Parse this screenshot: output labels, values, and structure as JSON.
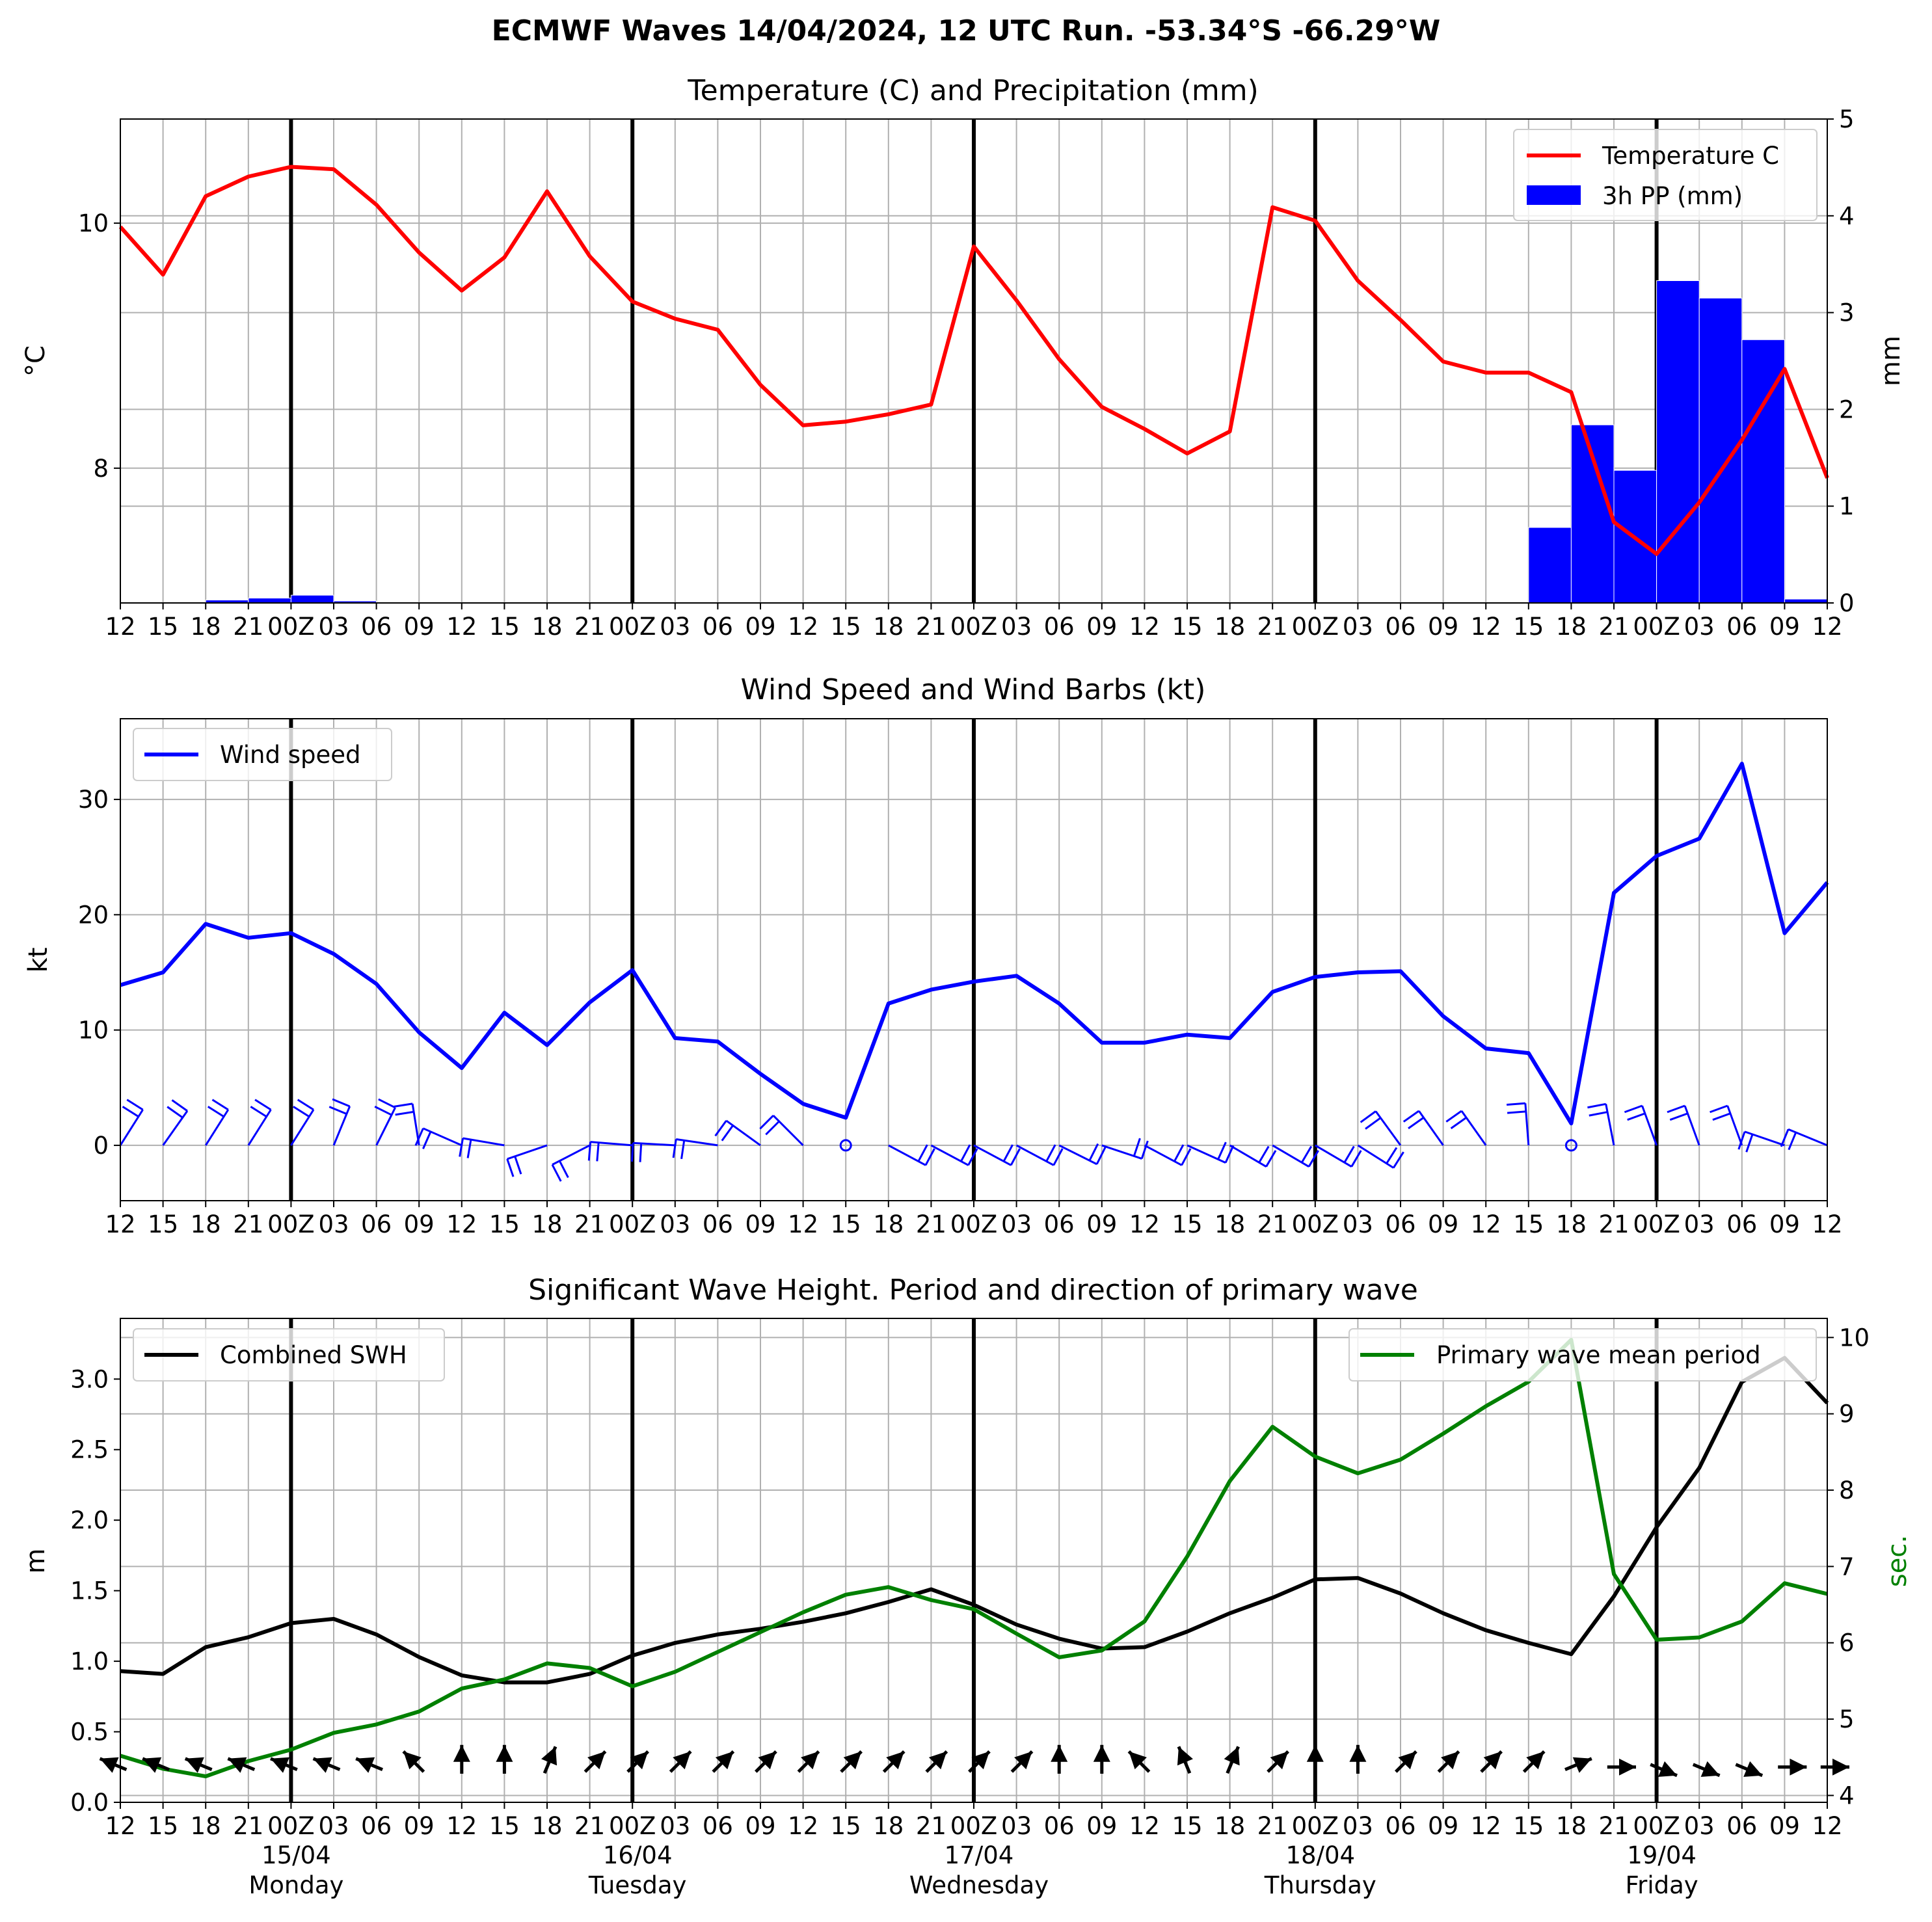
{
  "figure_title": "ECMWF Waves 14/04/2024, 12 UTC Run. -53.34°S -66.29°W",
  "time_ticks": [
    "12",
    "15",
    "18",
    "21",
    "00Z",
    "03",
    "06",
    "09",
    "12",
    "15",
    "18",
    "21",
    "00Z",
    "03",
    "06",
    "09",
    "12",
    "15",
    "18",
    "21",
    "00Z",
    "03",
    "06",
    "09",
    "12",
    "15",
    "18",
    "21",
    "00Z",
    "03",
    "06",
    "09",
    "12",
    "15",
    "18",
    "21",
    "00Z",
    "03",
    "06",
    "09",
    "12"
  ],
  "date_labels": [
    {
      "index": 4,
      "date": "15/04",
      "day": "Monday"
    },
    {
      "index": 12,
      "date": "16/04",
      "day": "Tuesday"
    },
    {
      "index": 20,
      "date": "17/04",
      "day": "Wednesday"
    },
    {
      "index": 28,
      "date": "18/04",
      "day": "Thursday"
    },
    {
      "index": 36,
      "date": "19/04",
      "day": "Friday"
    }
  ],
  "colors": {
    "temperature": "#ff0000",
    "precip": "#0000ff",
    "wind": "#0000ff",
    "swh": "#000000",
    "period": "#008000",
    "grid": "#b0b0b0",
    "day_line": "#000000"
  },
  "chart_data": [
    {
      "type": "line",
      "title": "Temperature (C) and Precipitation (mm)",
      "ylabel": "$^\\circ$C",
      "ylabel_display": "°C",
      "y2label": "mm",
      "ylim": [
        6.9,
        10.85
      ],
      "y2lim": [
        0,
        5
      ],
      "yticks": [
        8,
        10
      ],
      "y2ticks": [
        0,
        1,
        2,
        3,
        4,
        5
      ],
      "legend": "top-right",
      "series": [
        {
          "name": "Temperature C",
          "kind": "line",
          "axis": "left",
          "values": [
            9.97,
            9.58,
            10.22,
            10.38,
            10.46,
            10.44,
            10.15,
            9.76,
            9.45,
            9.72,
            10.26,
            9.73,
            9.36,
            9.22,
            9.13,
            8.68,
            8.35,
            8.38,
            8.44,
            8.52,
            9.81,
            9.37,
            8.89,
            8.5,
            8.32,
            8.12,
            8.3,
            10.13,
            10.02,
            9.53,
            9.21,
            8.87,
            8.78,
            8.78,
            8.62,
            7.56,
            7.3,
            7.72,
            8.23,
            8.81,
            7.92
          ]
        },
        {
          "name": "3h PP (mm)",
          "kind": "bar",
          "axis": "right",
          "values": [
            0,
            0,
            0.03,
            0.05,
            0.08,
            0.02,
            0,
            0,
            0,
            0,
            0,
            0,
            0,
            0,
            0,
            0,
            0,
            0,
            0,
            0,
            0,
            0,
            0,
            0,
            0,
            0,
            0,
            0,
            0,
            0,
            0,
            0,
            0,
            0.78,
            1.84,
            1.37,
            3.33,
            3.15,
            2.72,
            0.04
          ]
        }
      ]
    },
    {
      "type": "line",
      "title": "Wind Speed and Wind Barbs (kt)",
      "ylabel": "kt",
      "ylim": [
        -4.8,
        37
      ],
      "yticks": [
        0,
        10,
        20,
        30
      ],
      "legend": "top-left",
      "series": [
        {
          "name": "Wind speed",
          "values": [
            13.9,
            15.0,
            19.2,
            18.0,
            18.4,
            16.6,
            14.0,
            9.8,
            6.7,
            11.5,
            8.7,
            12.4,
            15.2,
            9.3,
            9.0,
            6.2,
            3.6,
            2.4,
            12.3,
            13.5,
            14.2,
            14.7,
            12.3,
            8.9,
            8.9,
            9.6,
            9.3,
            13.3,
            14.6,
            15.0,
            15.1,
            11.2,
            8.4,
            8.0,
            1.9,
            21.9,
            25.1,
            26.6,
            33.1,
            18.4,
            22.8
          ]
        },
        {
          "name": "Wind barbs",
          "kind": "barbs",
          "values": [
            [
              1.2,
              1.9
            ],
            [
              1.2,
              1.7
            ],
            [
              1.2,
              1.9
            ],
            [
              1.2,
              1.9
            ],
            [
              1.2,
              1.9
            ],
            [
              0.7,
              1.7
            ],
            [
              0.8,
              1.6
            ],
            [
              -0.3,
              1.9
            ],
            [
              -2.5,
              1.1
            ],
            [
              -3.5,
              0.6
            ],
            [
              -3.5,
              -1.2
            ],
            [
              -3.1,
              -1.6
            ],
            [
              -3.7,
              0.3
            ],
            [
              -3.5,
              0.2
            ],
            [
              -3.4,
              0.5
            ],
            [
              -1.8,
              1.3
            ],
            [
              -1.3,
              1.3
            ],
            [
              0,
              0
            ],
            [
              3.0,
              -1.6
            ],
            [
              3.0,
              -1.6
            ],
            [
              3.0,
              -1.6
            ],
            [
              3.0,
              -1.6
            ],
            [
              3.4,
              -1.7
            ],
            [
              3.6,
              -1.2
            ],
            [
              3.0,
              -1.6
            ],
            [
              3.1,
              -1.4
            ],
            [
              2.9,
              -1.7
            ],
            [
              2.9,
              -1.7
            ],
            [
              2.9,
              -1.7
            ],
            [
              1.9,
              -1.2
            ],
            [
              -0.8,
              1.1
            ],
            [
              -1.2,
              1.7
            ],
            [
              -1.2,
              1.7
            ],
            [
              -0.1,
              1.3
            ],
            [
              0,
              0
            ],
            [
              -0.6,
              3.1
            ],
            [
              -1.2,
              3.3
            ],
            [
              -1.2,
              3.3
            ],
            [
              -1.2,
              3.3
            ],
            [
              -3.5,
              1.2
            ],
            [
              -3.4,
              1.4
            ]
          ]
        }
      ]
    },
    {
      "type": "line",
      "title": "Significant Wave Height. Period and direction of primary wave",
      "ylabel": "m",
      "y2label": "sec.",
      "ylim": [
        0,
        3.43
      ],
      "y2lim": [
        3.91,
        10.25
      ],
      "yticks": [
        0.0,
        0.5,
        1.0,
        1.5,
        2.0,
        2.5,
        3.0
      ],
      "y2ticks": [
        4,
        5,
        6,
        7,
        8,
        9,
        10
      ],
      "legend": [
        "top-left",
        "top-right"
      ],
      "series": [
        {
          "name": "Combined SWH",
          "axis": "left",
          "values": [
            0.93,
            0.91,
            1.1,
            1.17,
            1.27,
            1.3,
            1.19,
            1.03,
            0.9,
            0.85,
            0.85,
            0.91,
            1.04,
            1.13,
            1.19,
            1.23,
            1.28,
            1.34,
            1.42,
            1.51,
            1.4,
            1.26,
            1.16,
            1.09,
            1.1,
            1.21,
            1.34,
            1.45,
            1.58,
            1.59,
            1.48,
            1.34,
            1.22,
            1.13,
            1.05,
            1.46,
            1.95,
            2.37,
            2.98,
            3.15,
            2.83
          ]
        },
        {
          "name": "Primary wave mean period",
          "axis": "right",
          "values": [
            4.52,
            4.35,
            4.25,
            4.45,
            4.6,
            4.82,
            4.93,
            5.1,
            5.4,
            5.52,
            5.73,
            5.67,
            5.43,
            5.62,
            5.88,
            6.14,
            6.4,
            6.63,
            6.73,
            6.56,
            6.44,
            6.12,
            5.81,
            5.9,
            6.28,
            7.13,
            8.12,
            8.83,
            8.44,
            8.22,
            8.4,
            8.74,
            9.1,
            9.42,
            9.97,
            6.9,
            6.04,
            6.07,
            6.28,
            6.78,
            6.64
          ]
        },
        {
          "name": "Primary wave direction",
          "kind": "arrows",
          "directions": [
            "ESE",
            "ESE",
            "ESE",
            "ESE",
            "ESE",
            "ESE",
            "ESE",
            "SE",
            "S",
            "S",
            "SSW",
            "SW",
            "SW",
            "SW",
            "SW",
            "SW",
            "SW",
            "SW",
            "SW",
            "SW",
            "SW",
            "SW",
            "S",
            "S",
            "SE",
            "SSE",
            "SSW",
            "SW",
            "S",
            "S",
            "SW",
            "SW",
            "SW",
            "SW",
            "WSW",
            "W",
            "WNW",
            "WNW",
            "WNW",
            "W",
            "W"
          ]
        }
      ]
    }
  ]
}
